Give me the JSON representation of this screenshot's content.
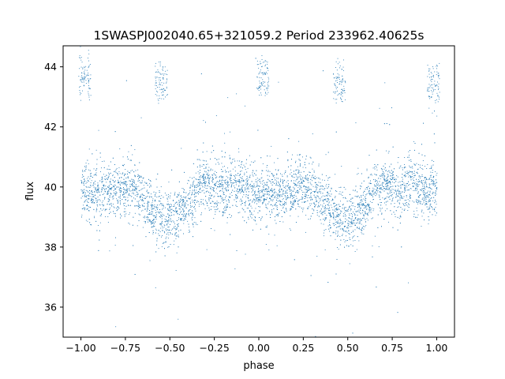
{
  "chart_data": {
    "type": "scatter",
    "title": "1SWASPJ002040.65+321059.2 Period 233962.40625s",
    "xlabel": "phase",
    "ylabel": "flux",
    "xlim": [
      -1.1,
      1.1
    ],
    "ylim": [
      35.0,
      44.7
    ],
    "xticks": [
      -1.0,
      -0.75,
      -0.5,
      -0.25,
      0.0,
      0.25,
      0.5,
      0.75,
      1.0
    ],
    "xtick_labels": [
      "−1.00",
      "−0.75",
      "−0.50",
      "−0.25",
      "0.00",
      "0.25",
      "0.50",
      "0.75",
      "1.00"
    ],
    "yticks": [
      36,
      38,
      40,
      42,
      44
    ],
    "ytick_labels": [
      "36",
      "38",
      "40",
      "42",
      "44"
    ],
    "grid": false,
    "marker_color": "#1f77b4",
    "series": [
      {
        "name": "",
        "profile": {
          "phase": [
            0.0,
            0.05,
            0.1,
            0.15,
            0.2,
            0.25,
            0.3,
            0.35,
            0.4,
            0.45,
            0.5,
            0.55,
            0.6,
            0.65,
            0.7,
            0.75,
            0.8,
            0.85,
            0.9,
            0.95,
            1.0
          ],
          "flux": [
            39.9,
            39.8,
            39.7,
            39.8,
            39.9,
            40.0,
            40.0,
            39.6,
            39.2,
            39.0,
            38.95,
            39.1,
            39.4,
            39.9,
            40.1,
            40.0,
            39.95,
            40.1,
            40.0,
            39.8,
            39.9
          ]
        },
        "outlier_clusters": [
          {
            "phase": -0.98,
            "flux": 43.7
          },
          {
            "phase": -0.55,
            "flux": 43.5
          },
          {
            "phase": 0.02,
            "flux": 43.6
          },
          {
            "phase": 0.45,
            "flux": 43.5
          },
          {
            "phase": 0.98,
            "flux": 43.4
          }
        ]
      }
    ]
  }
}
